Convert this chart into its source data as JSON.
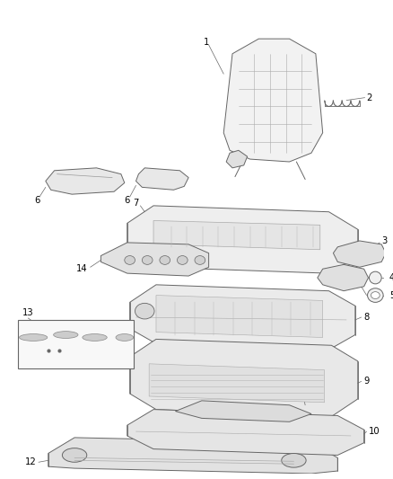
{
  "background_color": "#ffffff",
  "line_color": "#666666",
  "fill_color": "#f0f0f0",
  "fig_width": 4.38,
  "fig_height": 5.33,
  "dpi": 100
}
